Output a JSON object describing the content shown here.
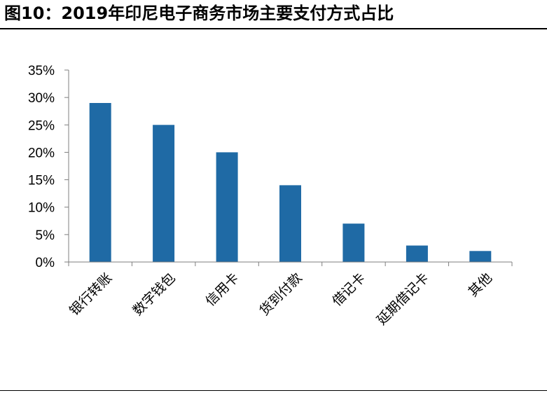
{
  "header": {
    "title": "图10：2019年印尼电子商务市场主要支付方式占比"
  },
  "chart_data": {
    "type": "bar",
    "title": "图10：2019年印尼电子商务市场主要支付方式占比",
    "categories": [
      "银行转账",
      "数字钱包",
      "信用卡",
      "货到付款",
      "借记卡",
      "延期借记卡",
      "其他"
    ],
    "series": [
      {
        "values": [
          29,
          25,
          20,
          14,
          7,
          3,
          2
        ],
        "color": "#1f6aa5"
      }
    ],
    "ylim": [
      0,
      35
    ],
    "yticks": [
      0,
      5,
      10,
      15,
      20,
      25,
      30,
      35
    ],
    "ytick_labels": [
      "0%",
      "5%",
      "10%",
      "15%",
      "20%",
      "25%",
      "30%",
      "35%"
    ],
    "xlabel": "",
    "ylabel": "",
    "grid": false,
    "legend": "none",
    "x_tick_rotation": -45
  }
}
